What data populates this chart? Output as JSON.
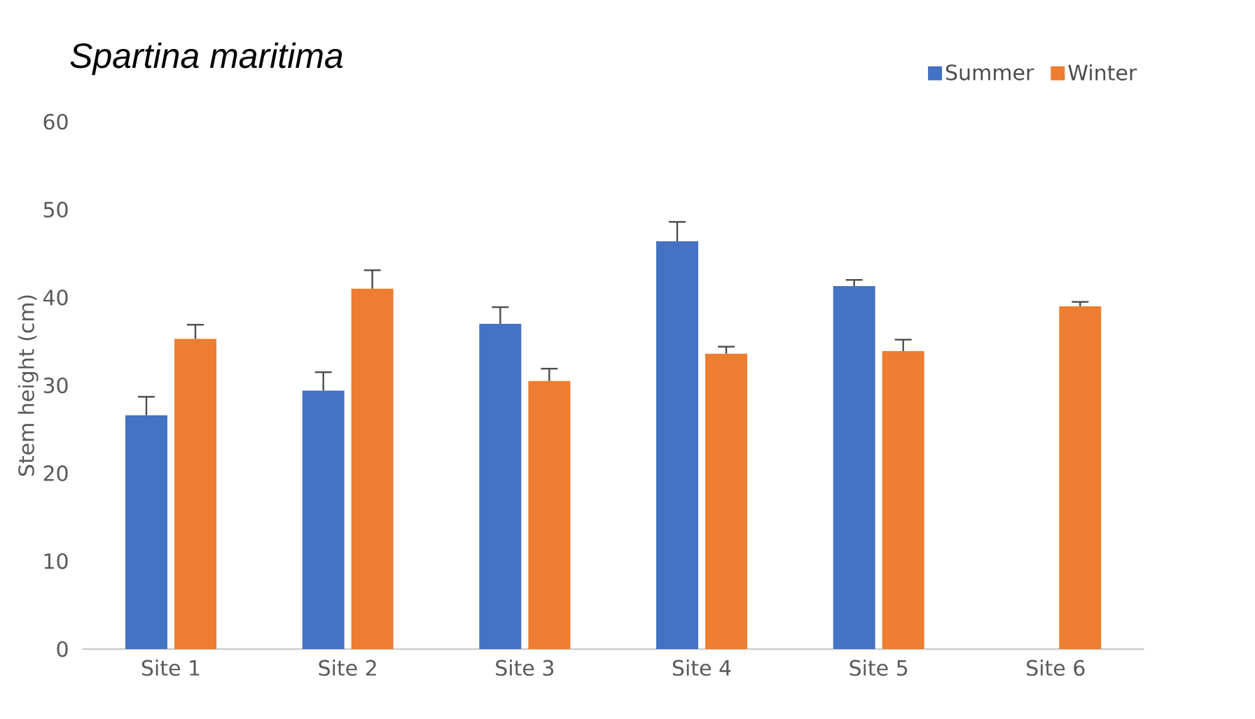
{
  "chart_data": {
    "type": "bar",
    "title": "Spartina maritima",
    "ylabel": "Stem height (cm)",
    "categories": [
      "Site 1",
      "Site 2",
      "Site 3",
      "Site 4",
      "Site 5",
      "Site 6"
    ],
    "series": [
      {
        "name": "Summer",
        "color": "#4472c4",
        "values": [
          26.6,
          29.4,
          37.0,
          46.4,
          41.3,
          null
        ],
        "errors": [
          [
            26.6,
            28.7
          ],
          [
            29.4,
            31.5
          ],
          [
            37.0,
            38.9
          ],
          [
            46.4,
            48.6
          ],
          [
            41.3,
            42.0
          ],
          null
        ]
      },
      {
        "name": "Winter",
        "color": "#ed7d31",
        "values": [
          35.3,
          41.0,
          30.5,
          33.6,
          33.9,
          39.0
        ],
        "errors": [
          [
            35.3,
            36.9
          ],
          [
            41.0,
            43.1
          ],
          [
            30.5,
            31.9
          ],
          [
            33.6,
            34.4
          ],
          [
            33.9,
            35.2
          ],
          [
            39.0,
            39.5
          ]
        ]
      }
    ],
    "ylim": [
      0,
      60
    ],
    "yticks": [
      0,
      10,
      20,
      30,
      40,
      50,
      60
    ],
    "grid": false,
    "legend": "top right"
  }
}
